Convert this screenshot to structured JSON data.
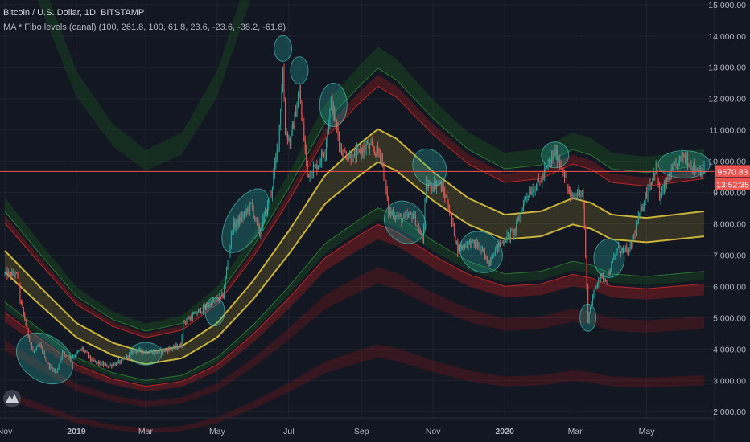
{
  "header": {
    "title": "Bitcoin / U.S. Dollar, 1D, BITSTAMP",
    "indicator": "MA * Fibo levels (canal) (100, 261.8, 100, 61.8, 23.6, -23.6, -38.2, -61.8)"
  },
  "price_tag": {
    "price": "9670.83",
    "countdown": "13:52:35"
  },
  "colors": {
    "background": "#131722",
    "grid": "#1e222d",
    "candle_up": "#26a69a",
    "candle_down": "#ef5350",
    "ma": "#c9b33a",
    "band_red": "#b71c1c",
    "band_green": "#1b5e20",
    "highlight": "#26a69a",
    "price_line": "#ef5350"
  },
  "chart_data": {
    "type": "candlestick",
    "title": "Bitcoin / U.S. Dollar, 1D, BITSTAMP",
    "y_ticks": [
      2000,
      3000,
      4000,
      5000,
      6000,
      7000,
      8000,
      9000,
      10000,
      11000,
      12000,
      13000,
      14000,
      15000
    ],
    "ylim": [
      1800,
      15150
    ],
    "x_ticks": [
      "Nov",
      "2019",
      "Mar",
      "May",
      "Jul",
      "Sep",
      "Nov",
      "2020",
      "Mar",
      "May"
    ],
    "x_tick_dates": [
      "2018-11-01",
      "2019-01-01",
      "2019-03-01",
      "2019-05-01",
      "2019-07-01",
      "2019-09-01",
      "2019-11-01",
      "2020-01-01",
      "2020-03-01",
      "2020-05-01"
    ],
    "x_range": [
      "2018-11-01",
      "2020-06-19"
    ],
    "last_price": 9670.83,
    "price_anchors": [
      [
        "2018-11-01",
        6400
      ],
      [
        "2018-11-12",
        6350
      ],
      [
        "2018-11-14",
        5600
      ],
      [
        "2018-11-20",
        4600
      ],
      [
        "2018-11-25",
        3900
      ],
      [
        "2018-12-01",
        4100
      ],
      [
        "2018-12-08",
        3500
      ],
      [
        "2018-12-15",
        3250
      ],
      [
        "2018-12-20",
        3900
      ],
      [
        "2018-12-27",
        3700
      ],
      [
        "2019-01-06",
        4000
      ],
      [
        "2019-01-15",
        3600
      ],
      [
        "2019-01-28",
        3450
      ],
      [
        "2019-02-08",
        3600
      ],
      [
        "2019-02-20",
        3950
      ],
      [
        "2019-03-10",
        3900
      ],
      [
        "2019-03-31",
        4100
      ],
      [
        "2019-04-02",
        4850
      ],
      [
        "2019-04-23",
        5400
      ],
      [
        "2019-05-06",
        5700
      ],
      [
        "2019-05-14",
        7900
      ],
      [
        "2019-05-20",
        8100
      ],
      [
        "2019-05-30",
        8600
      ],
      [
        "2019-06-06",
        7700
      ],
      [
        "2019-06-16",
        9000
      ],
      [
        "2019-06-22",
        10600
      ],
      [
        "2019-06-26",
        12900
      ],
      [
        "2019-06-28",
        11000
      ],
      [
        "2019-07-02",
        10600
      ],
      [
        "2019-07-10",
        12200
      ],
      [
        "2019-07-17",
        9600
      ],
      [
        "2019-07-24",
        9800
      ],
      [
        "2019-08-01",
        10400
      ],
      [
        "2019-08-06",
        11900
      ],
      [
        "2019-08-15",
        10300
      ],
      [
        "2019-08-25",
        10100
      ],
      [
        "2019-09-05",
        10500
      ],
      [
        "2019-09-18",
        10200
      ],
      [
        "2019-09-24",
        8400
      ],
      [
        "2019-10-06",
        8150
      ],
      [
        "2019-10-15",
        8300
      ],
      [
        "2019-10-23",
        7450
      ],
      [
        "2019-10-26",
        9200
      ],
      [
        "2019-11-06",
        9300
      ],
      [
        "2019-11-13",
        8750
      ],
      [
        "2019-11-22",
        7200
      ],
      [
        "2019-12-01",
        7400
      ],
      [
        "2019-12-10",
        7300
      ],
      [
        "2019-12-18",
        6750
      ],
      [
        "2019-12-25",
        7250
      ],
      [
        "2020-01-10",
        7800
      ],
      [
        "2020-01-19",
        8900
      ],
      [
        "2020-02-01",
        9400
      ],
      [
        "2020-02-13",
        10300
      ],
      [
        "2020-02-20",
        9700
      ],
      [
        "2020-02-26",
        8800
      ],
      [
        "2020-03-07",
        9100
      ],
      [
        "2020-03-09",
        7900
      ],
      [
        "2020-03-12",
        4950
      ],
      [
        "2020-03-14",
        5350
      ],
      [
        "2020-03-21",
        6300
      ],
      [
        "2020-03-28",
        6250
      ],
      [
        "2020-04-06",
        7200
      ],
      [
        "2020-04-16",
        7100
      ],
      [
        "2020-04-29",
        8800
      ],
      [
        "2020-05-09",
        9800
      ],
      [
        "2020-05-12",
        8800
      ],
      [
        "2020-05-20",
        9500
      ],
      [
        "2020-06-01",
        10200
      ],
      [
        "2020-06-10",
        9800
      ],
      [
        "2020-06-19",
        9670
      ]
    ],
    "moving_average": [
      [
        "2018-11-01",
        6800
      ],
      [
        "2018-12-01",
        5700
      ],
      [
        "2019-01-01",
        4600
      ],
      [
        "2019-02-01",
        4000
      ],
      [
        "2019-03-01",
        3700
      ],
      [
        "2019-04-01",
        3900
      ],
      [
        "2019-05-01",
        4600
      ],
      [
        "2019-06-01",
        5900
      ],
      [
        "2019-07-01",
        7400
      ],
      [
        "2019-08-01",
        9100
      ],
      [
        "2019-09-01",
        10100
      ],
      [
        "2019-09-15",
        10500
      ],
      [
        "2019-10-01",
        10200
      ],
      [
        "2019-11-01",
        9200
      ],
      [
        "2019-12-01",
        8400
      ],
      [
        "2020-01-01",
        7900
      ],
      [
        "2020-02-01",
        8000
      ],
      [
        "2020-02-28",
        8400
      ],
      [
        "2020-03-15",
        8250
      ],
      [
        "2020-04-01",
        7900
      ],
      [
        "2020-05-01",
        7800
      ],
      [
        "2020-06-19",
        8000
      ]
    ],
    "annotations": "teal ellipses highlight price swings touching the channel bands"
  }
}
